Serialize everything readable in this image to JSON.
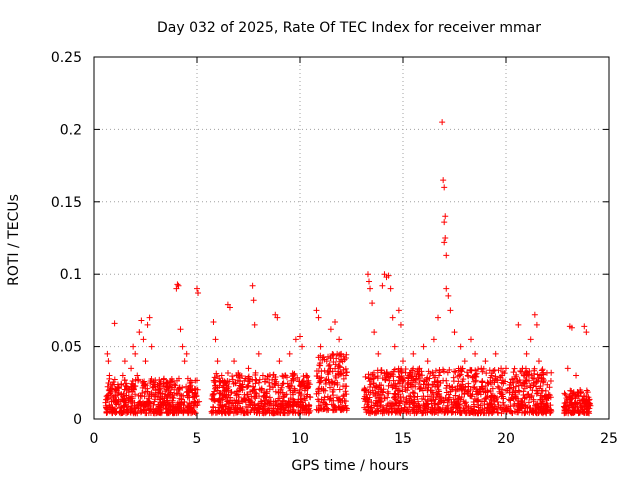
{
  "chart_data": {
    "type": "scatter",
    "title": "Day 032 of 2025, Rate Of TEC Index for receiver mmar",
    "xlabel": "GPS time / hours",
    "ylabel": "ROTI / TECUs",
    "xlim": [
      0,
      25
    ],
    "ylim": [
      0,
      0.25
    ],
    "x_ticks": [
      "0",
      "5",
      "10",
      "15",
      "20",
      "25"
    ],
    "y_ticks": [
      "0",
      "0.05",
      "0.1",
      "0.15",
      "0.2",
      "0.25"
    ],
    "grid": true,
    "marker": "plus",
    "color": "#ff0000",
    "points": [
      [
        0.65,
        0.045
      ],
      [
        0.7,
        0.04
      ],
      [
        0.75,
        0.03
      ],
      [
        0.8,
        0.02
      ],
      [
        0.85,
        0.012
      ],
      [
        0.9,
        0.008
      ],
      [
        0.95,
        0.015
      ],
      [
        1.0,
        0.066
      ],
      [
        1.05,
        0.02
      ],
      [
        1.1,
        0.01
      ],
      [
        1.2,
        0.018
      ],
      [
        1.3,
        0.012
      ],
      [
        1.4,
        0.03
      ],
      [
        1.5,
        0.04
      ],
      [
        1.6,
        0.022
      ],
      [
        1.7,
        0.015
      ],
      [
        1.8,
        0.035
      ],
      [
        1.9,
        0.05
      ],
      [
        2.0,
        0.045
      ],
      [
        2.1,
        0.03
      ],
      [
        2.2,
        0.06
      ],
      [
        2.3,
        0.068
      ],
      [
        2.4,
        0.055
      ],
      [
        2.5,
        0.04
      ],
      [
        2.6,
        0.065
      ],
      [
        2.7,
        0.07
      ],
      [
        2.8,
        0.05
      ],
      [
        2.9,
        0.025
      ],
      [
        3.0,
        0.02
      ],
      [
        3.2,
        0.015
      ],
      [
        3.4,
        0.012
      ],
      [
        3.6,
        0.01
      ],
      [
        3.8,
        0.015
      ],
      [
        4.0,
        0.09
      ],
      [
        4.05,
        0.093
      ],
      [
        4.1,
        0.092
      ],
      [
        4.2,
        0.062
      ],
      [
        4.3,
        0.05
      ],
      [
        4.4,
        0.04
      ],
      [
        4.5,
        0.045
      ],
      [
        4.6,
        0.02
      ],
      [
        4.8,
        0.015
      ],
      [
        5.0,
        0.09
      ],
      [
        5.05,
        0.087
      ],
      [
        5.1,
        0.012
      ],
      [
        5.8,
        0.067
      ],
      [
        5.9,
        0.055
      ],
      [
        6.0,
        0.04
      ],
      [
        6.2,
        0.03
      ],
      [
        6.4,
        0.025
      ],
      [
        6.5,
        0.079
      ],
      [
        6.6,
        0.077
      ],
      [
        6.8,
        0.04
      ],
      [
        7.0,
        0.03
      ],
      [
        7.2,
        0.02
      ],
      [
        7.5,
        0.035
      ],
      [
        7.7,
        0.092
      ],
      [
        7.75,
        0.082
      ],
      [
        7.8,
        0.065
      ],
      [
        8.0,
        0.045
      ],
      [
        8.2,
        0.03
      ],
      [
        8.5,
        0.025
      ],
      [
        8.8,
        0.072
      ],
      [
        8.9,
        0.07
      ],
      [
        9.0,
        0.04
      ],
      [
        9.3,
        0.03
      ],
      [
        9.5,
        0.045
      ],
      [
        9.8,
        0.055
      ],
      [
        10.0,
        0.057
      ],
      [
        10.1,
        0.05
      ],
      [
        10.3,
        0.03
      ],
      [
        10.5,
        0.015
      ],
      [
        10.8,
        0.075
      ],
      [
        10.9,
        0.07
      ],
      [
        11.0,
        0.05
      ],
      [
        11.3,
        0.04
      ],
      [
        11.5,
        0.062
      ],
      [
        11.7,
        0.067
      ],
      [
        11.9,
        0.055
      ],
      [
        12.0,
        0.045
      ],
      [
        13.3,
        0.1
      ],
      [
        13.35,
        0.095
      ],
      [
        13.4,
        0.09
      ],
      [
        13.5,
        0.08
      ],
      [
        13.6,
        0.06
      ],
      [
        13.8,
        0.045
      ],
      [
        14.0,
        0.092
      ],
      [
        14.1,
        0.1
      ],
      [
        14.2,
        0.098
      ],
      [
        14.3,
        0.099
      ],
      [
        14.4,
        0.09
      ],
      [
        14.5,
        0.07
      ],
      [
        14.6,
        0.05
      ],
      [
        14.8,
        0.075
      ],
      [
        14.9,
        0.065
      ],
      [
        15.0,
        0.04
      ],
      [
        15.3,
        0.03
      ],
      [
        15.5,
        0.045
      ],
      [
        15.8,
        0.035
      ],
      [
        16.0,
        0.05
      ],
      [
        16.2,
        0.04
      ],
      [
        16.5,
        0.055
      ],
      [
        16.7,
        0.07
      ],
      [
        16.9,
        0.205
      ],
      [
        16.95,
        0.165
      ],
      [
        17.0,
        0.16
      ],
      [
        17.05,
        0.14
      ],
      [
        17.0,
        0.136
      ],
      [
        17.05,
        0.125
      ],
      [
        17.0,
        0.122
      ],
      [
        17.1,
        0.113
      ],
      [
        17.1,
        0.09
      ],
      [
        17.2,
        0.085
      ],
      [
        17.3,
        0.075
      ],
      [
        17.5,
        0.06
      ],
      [
        17.8,
        0.05
      ],
      [
        18.0,
        0.04
      ],
      [
        18.3,
        0.055
      ],
      [
        18.5,
        0.045
      ],
      [
        18.8,
        0.035
      ],
      [
        19.0,
        0.04
      ],
      [
        19.3,
        0.03
      ],
      [
        19.5,
        0.045
      ],
      [
        19.8,
        0.03
      ],
      [
        20.0,
        0.035
      ],
      [
        20.3,
        0.025
      ],
      [
        20.6,
        0.065
      ],
      [
        20.8,
        0.035
      ],
      [
        21.0,
        0.045
      ],
      [
        21.2,
        0.055
      ],
      [
        21.4,
        0.072
      ],
      [
        21.5,
        0.065
      ],
      [
        21.6,
        0.04
      ],
      [
        21.8,
        0.025
      ],
      [
        22.0,
        0.015
      ],
      [
        23.0,
        0.035
      ],
      [
        23.1,
        0.064
      ],
      [
        23.2,
        0.063
      ],
      [
        23.4,
        0.03
      ],
      [
        23.6,
        0.02
      ],
      [
        23.8,
        0.064
      ],
      [
        23.9,
        0.06
      ],
      [
        24.0,
        0.015
      ]
    ],
    "dense_bands": [
      {
        "x_start": 0.55,
        "x_end": 5.05,
        "y_min": 0.004,
        "y_max": 0.028
      },
      {
        "x_start": 5.7,
        "x_end": 10.5,
        "y_min": 0.004,
        "y_max": 0.032
      },
      {
        "x_start": 10.8,
        "x_end": 12.3,
        "y_min": 0.006,
        "y_max": 0.045
      },
      {
        "x_start": 13.1,
        "x_end": 22.2,
        "y_min": 0.004,
        "y_max": 0.035
      },
      {
        "x_start": 22.8,
        "x_end": 24.1,
        "y_min": 0.004,
        "y_max": 0.02
      }
    ]
  }
}
